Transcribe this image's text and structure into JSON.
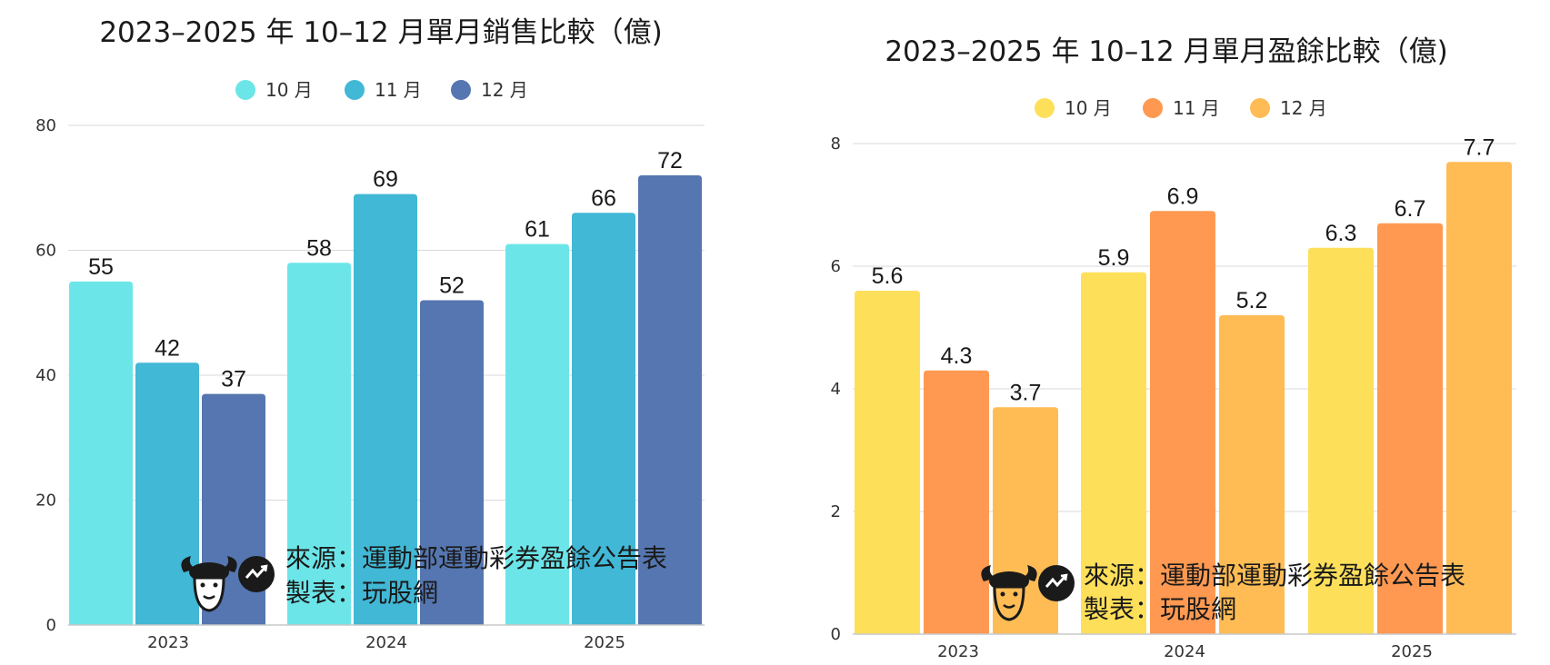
{
  "chart_data": [
    {
      "type": "bar",
      "title": "2023–2025 年 10–12 月單月銷售比較（億)",
      "categories": [
        "2023",
        "2024",
        "2025"
      ],
      "series": [
        {
          "name": "10 月",
          "values": [
            55,
            58,
            61
          ],
          "color": "#6ce5e8"
        },
        {
          "name": "11 月",
          "values": [
            42,
            69,
            66
          ],
          "color": "#41b8d5"
        },
        {
          "name": "12 月",
          "values": [
            37,
            52,
            72
          ],
          "color": "#5576b0"
        }
      ],
      "ylim": [
        0,
        80
      ],
      "yticks": [
        "0",
        "20",
        "40",
        "60",
        "80"
      ],
      "ytick_values": [
        0,
        20,
        40,
        60,
        80
      ],
      "value_labels": [
        [
          "55",
          "58",
          "61"
        ],
        [
          "42",
          "69",
          "66"
        ],
        [
          "37",
          "52",
          "72"
        ]
      ],
      "xlabel": "",
      "ylabel": "",
      "legend_position": "top-center",
      "grid": true
    },
    {
      "type": "bar",
      "title": "2023–2025 年 10–12 月單月盈餘比較（億)",
      "categories": [
        "2023",
        "2024",
        "2025"
      ],
      "series": [
        {
          "name": "10 月",
          "values": [
            5.6,
            5.9,
            6.3
          ],
          "color": "#fedf5a"
        },
        {
          "name": "11 月",
          "values": [
            4.3,
            6.9,
            6.7
          ],
          "color": "#ff9951"
        },
        {
          "name": "12 月",
          "values": [
            3.7,
            5.2,
            7.7
          ],
          "color": "#ffbc55"
        }
      ],
      "ylim": [
        0,
        8
      ],
      "yticks": [
        "0",
        "2",
        "4",
        "6",
        "8"
      ],
      "ytick_values": [
        0,
        2,
        4,
        6,
        8
      ],
      "value_labels": [
        [
          "5.6",
          "5.9",
          "6.3"
        ],
        [
          "4.3",
          "6.9",
          "6.7"
        ],
        [
          "3.7",
          "5.2",
          "7.7"
        ]
      ],
      "xlabel": "",
      "ylabel": "",
      "legend_position": "top-center",
      "grid": true
    }
  ],
  "watermark": {
    "source_line": "來源：運動部運動彩券盈餘公告表",
    "maker_line": "製表：玩股網",
    "logo_icon": "bull-logo-icon"
  }
}
